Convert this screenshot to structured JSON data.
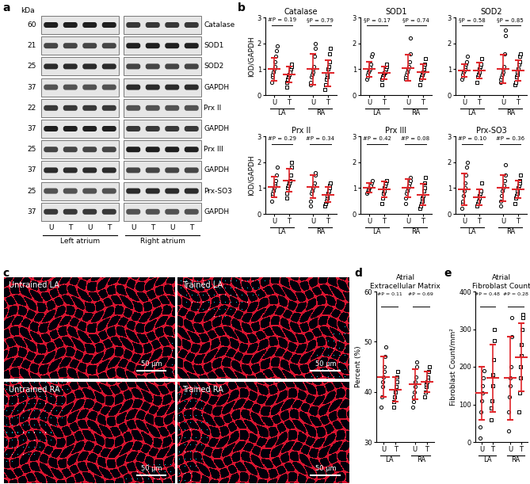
{
  "panel_labels": [
    "a",
    "b",
    "c",
    "d",
    "e"
  ],
  "blot": {
    "unit_label": "kDa",
    "rows": [
      {
        "kda": 60,
        "protein": "Catalase"
      },
      {
        "kda": 21,
        "protein": "SOD1"
      },
      {
        "kda": 25,
        "protein": "SOD2"
      },
      {
        "kda": 37,
        "protein": "GAPDH"
      },
      {
        "kda": 22,
        "protein": "Prx II"
      },
      {
        "kda": 37,
        "protein": "GAPDH"
      },
      {
        "kda": 25,
        "protein": "Prx III"
      },
      {
        "kda": 37,
        "protein": "GAPDH"
      },
      {
        "kda": 25,
        "protein": "Prx-SO3"
      },
      {
        "kda": 37,
        "protein": "GAPDH"
      }
    ],
    "lanes": [
      "U",
      "T",
      "U",
      "T"
    ],
    "groups": [
      "Left atrium",
      "Right atrium"
    ]
  },
  "micrographs": {
    "panels": [
      "Untrained LA",
      "Trained LA",
      "Untrained RA",
      "Trained RA"
    ],
    "scale_bar": "50 µm"
  },
  "chart_data": [
    {
      "type": "scatter",
      "title": "Catalase",
      "y_label": "IOD/GAPDH",
      "categories": [
        "U",
        "T",
        "U",
        "T"
      ],
      "groups": [
        "LA",
        "RA"
      ],
      "points": [
        [
          0.5,
          0.7,
          0.8,
          0.9,
          1.0,
          1.1,
          1.3,
          1.5,
          1.7,
          1.9
        ],
        [
          0.3,
          0.5,
          0.6,
          0.7,
          0.8,
          0.9,
          1.0,
          1.1,
          1.2
        ],
        [
          0.4,
          0.5,
          0.7,
          0.8,
          0.9,
          1.0,
          1.1,
          1.5,
          1.8,
          2.0
        ],
        [
          0.2,
          0.4,
          0.6,
          0.7,
          0.8,
          1.0,
          1.1,
          1.3,
          1.6,
          1.8
        ]
      ],
      "mean": [
        1.0,
        0.8,
        1.0,
        0.85
      ],
      "sd": [
        0.45,
        0.3,
        0.6,
        0.5
      ],
      "p_labels": [
        "#P = 0.19",
        "§P = 0.79"
      ],
      "ylim": [
        0,
        3
      ],
      "yticks": [
        0,
        1,
        2,
        3
      ],
      "color": "#e0262b"
    },
    {
      "type": "scatter",
      "title": "SOD1",
      "categories": [
        "U",
        "T",
        "U",
        "T"
      ],
      "groups": [
        "LA",
        "RA"
      ],
      "points": [
        [
          0.6,
          0.7,
          0.8,
          0.9,
          0.95,
          1.0,
          1.1,
          1.2,
          1.5,
          1.6
        ],
        [
          0.4,
          0.6,
          0.7,
          0.8,
          0.85,
          0.9,
          1.0,
          1.1,
          1.2
        ],
        [
          0.6,
          0.7,
          0.8,
          0.9,
          1.0,
          1.1,
          1.3,
          1.6,
          2.2
        ],
        [
          0.4,
          0.6,
          0.7,
          0.8,
          0.9,
          1.0,
          1.1,
          1.2,
          1.4
        ]
      ],
      "mean": [
        1.0,
        0.85,
        1.05,
        0.9
      ],
      "sd": [
        0.3,
        0.25,
        0.5,
        0.3
      ],
      "p_labels": [
        "§P = 0.17",
        "§P = 0.74"
      ],
      "ylim": [
        0,
        3
      ],
      "yticks": [
        0,
        1,
        2,
        3
      ],
      "color": "#e0262b"
    },
    {
      "type": "scatter",
      "title": "SOD2",
      "categories": [
        "U",
        "T",
        "U",
        "T"
      ],
      "groups": [
        "LA",
        "RA"
      ],
      "points": [
        [
          0.6,
          0.7,
          0.8,
          0.9,
          0.95,
          1.0,
          1.1,
          1.2,
          1.3,
          1.5
        ],
        [
          0.5,
          0.7,
          0.8,
          0.9,
          1.0,
          1.1,
          1.2,
          1.4
        ],
        [
          0.5,
          0.6,
          0.7,
          0.8,
          0.9,
          1.0,
          1.1,
          1.6,
          2.3,
          2.5
        ],
        [
          0.4,
          0.5,
          0.7,
          0.8,
          0.9,
          1.0,
          1.2,
          1.3,
          1.5,
          1.6
        ]
      ],
      "mean": [
        0.95,
        0.95,
        1.0,
        0.95
      ],
      "sd": [
        0.25,
        0.3,
        0.55,
        0.4
      ],
      "p_labels": [
        "§P = 0.58",
        "§P = 0.85"
      ],
      "ylim": [
        0,
        3
      ],
      "yticks": [
        0,
        1,
        2,
        3
      ],
      "color": "#e0262b"
    },
    {
      "type": "scatter",
      "title": "Prx II",
      "y_label": "IOD/GAPDH",
      "categories": [
        "U",
        "T",
        "U",
        "T"
      ],
      "groups": [
        "LA",
        "RA"
      ],
      "points": [
        [
          0.5,
          0.7,
          0.8,
          0.9,
          1.0,
          1.1,
          1.2,
          1.3,
          1.5,
          1.8
        ],
        [
          0.6,
          0.8,
          1.0,
          1.1,
          1.2,
          1.3,
          1.5,
          1.8,
          2.0
        ],
        [
          0.3,
          0.5,
          0.8,
          0.9,
          1.0,
          1.1,
          1.2,
          1.5,
          1.6
        ],
        [
          0.3,
          0.4,
          0.5,
          0.6,
          0.7,
          0.8,
          0.9,
          1.0,
          1.1,
          1.2
        ]
      ],
      "mean": [
        1.05,
        1.3,
        1.05,
        0.75
      ],
      "sd": [
        0.4,
        0.45,
        0.45,
        0.3
      ],
      "p_labels": [
        "#P = 0.29",
        "#P = 0.34"
      ],
      "ylim": [
        0,
        3
      ],
      "yticks": [
        0,
        1,
        2,
        3
      ],
      "color": "#e0262b"
    },
    {
      "type": "scatter",
      "title": "Prx III",
      "categories": [
        "U",
        "T",
        "U",
        "T"
      ],
      "groups": [
        "LA",
        "RA"
      ],
      "points": [
        [
          0.8,
          0.85,
          0.9,
          0.95,
          1.0,
          1.05,
          1.1,
          1.2,
          1.3
        ],
        [
          0.4,
          0.6,
          0.8,
          0.9,
          1.0,
          1.1,
          1.2,
          1.3
        ],
        [
          0.4,
          0.6,
          0.8,
          0.9,
          1.0,
          1.1,
          1.2,
          1.3,
          1.4
        ],
        [
          0.2,
          0.3,
          0.4,
          0.5,
          0.6,
          0.7,
          0.9,
          1.0,
          1.2,
          1.4
        ]
      ],
      "mean": [
        1.0,
        0.95,
        1.0,
        0.75
      ],
      "sd": [
        0.18,
        0.3,
        0.35,
        0.4
      ],
      "p_labels": [
        "#P = 0.42",
        "#P = 0.08"
      ],
      "ylim": [
        0,
        3
      ],
      "yticks": [
        0,
        1,
        2,
        3
      ],
      "color": "#e0262b"
    },
    {
      "type": "scatter",
      "title": "Prx-SO3",
      "categories": [
        "U",
        "T",
        "U",
        "T"
      ],
      "groups": [
        "LA",
        "RA"
      ],
      "points": [
        [
          0.2,
          0.4,
          0.5,
          0.7,
          0.9,
          1.0,
          1.2,
          1.5,
          1.8,
          2.0
        ],
        [
          0.3,
          0.4,
          0.5,
          0.6,
          0.7,
          0.8,
          0.9,
          1.2
        ],
        [
          0.3,
          0.5,
          0.7,
          0.9,
          1.0,
          1.1,
          1.3,
          1.5,
          1.9
        ],
        [
          0.4,
          0.6,
          0.7,
          0.8,
          0.9,
          1.0,
          1.1,
          1.2,
          1.3,
          1.5
        ]
      ],
      "mean": [
        0.95,
        0.65,
        1.0,
        0.95
      ],
      "sd": [
        0.6,
        0.3,
        0.5,
        0.35
      ],
      "p_labels": [
        "#P = 0.10",
        "#P = 0.36"
      ],
      "ylim": [
        0,
        3
      ],
      "yticks": [
        0,
        1,
        2,
        3
      ],
      "color": "#e0262b"
    },
    {
      "type": "scatter",
      "title": "Atrial\nExtracellular Matrix",
      "y_label": "Percent (%)",
      "categories": [
        "U",
        "T",
        "U",
        "T"
      ],
      "groups": [
        "LA",
        "RA"
      ],
      "points": [
        [
          37,
          39,
          41,
          42,
          43,
          44,
          45,
          47,
          49
        ],
        [
          37,
          38,
          39,
          40,
          41,
          42,
          43,
          44
        ],
        [
          37,
          38,
          39,
          40,
          41,
          42,
          43,
          45,
          46
        ],
        [
          39,
          40,
          41,
          41.5,
          42,
          42.5,
          43,
          44,
          45
        ]
      ],
      "mean": [
        43,
        40.5,
        41.5,
        42
      ],
      "sd": [
        4,
        2.5,
        3,
        2
      ],
      "p_labels": [
        "#P = 0.11",
        "#P = 0.69"
      ],
      "ylim": [
        30,
        60
      ],
      "yticks": [
        30,
        40,
        50,
        60
      ],
      "color": "#e0262b"
    },
    {
      "type": "scatter",
      "title": "Atrial\nFibroblast Count",
      "y_label": "Fibroblast Count/mm²",
      "categories": [
        "U",
        "T",
        "U",
        "T"
      ],
      "groups": [
        "LA",
        "RA"
      ],
      "points": [
        [
          10,
          40,
          80,
          110,
          130,
          150,
          170,
          190
        ],
        [
          60,
          90,
          110,
          150,
          180,
          220,
          270,
          300
        ],
        [
          30,
          80,
          120,
          150,
          170,
          200,
          280,
          330
        ],
        [
          80,
          130,
          170,
          200,
          230,
          260,
          300,
          330,
          340
        ]
      ],
      "mean": [
        130,
        170,
        170,
        225
      ],
      "sd": [
        70,
        90,
        110,
        90
      ],
      "p_labels": [
        "#P = 0.48",
        "#P = 0.28"
      ],
      "ylim": [
        0,
        400
      ],
      "yticks": [
        0,
        100,
        200,
        300,
        400
      ],
      "color": "#e0262b"
    }
  ]
}
